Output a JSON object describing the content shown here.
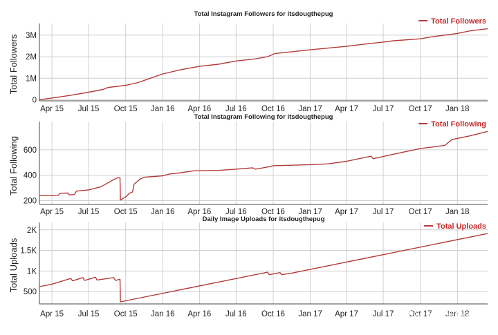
{
  "chart_data": [
    {
      "type": "line",
      "title": "Total Instagram Followers for itsdougthepug",
      "ylabel": "Total Followers",
      "xlabel": "",
      "x_ticks": [
        "Apr 15",
        "Jul 15",
        "Oct 15",
        "Jan 16",
        "Apr 16",
        "Jul 16",
        "Oct 16",
        "Jan 17",
        "Apr 17",
        "Jul 17",
        "Oct 17",
        "Jan 18"
      ],
      "y_ticks": [
        {
          "value": 0,
          "label": "0"
        },
        {
          "value": 1000000,
          "label": "1M"
        },
        {
          "value": 2000000,
          "label": "2M"
        },
        {
          "value": 3000000,
          "label": "3M"
        }
      ],
      "ylim": [
        -50000,
        3350000
      ],
      "grid": true,
      "legend_position": "top-right",
      "series": [
        {
          "name": "Total Followers",
          "color": "#b23b3b",
          "points": [
            [
              "2015-03-15",
              0
            ],
            [
              "2015-04-15",
              80000
            ],
            [
              "2015-06-01",
              210000
            ],
            [
              "2015-07-15",
              350000
            ],
            [
              "2015-08-20",
              480000
            ],
            [
              "2015-09-01",
              570000
            ],
            [
              "2015-09-10",
              590000
            ],
            [
              "2015-10-15",
              670000
            ],
            [
              "2015-11-15",
              800000
            ],
            [
              "2015-12-15",
              1000000
            ],
            [
              "2016-01-15",
              1200000
            ],
            [
              "2016-03-01",
              1400000
            ],
            [
              "2016-04-15",
              1550000
            ],
            [
              "2016-06-01",
              1650000
            ],
            [
              "2016-07-15",
              1800000
            ],
            [
              "2016-09-01",
              1900000
            ],
            [
              "2016-10-01",
              2000000
            ],
            [
              "2016-10-20",
              2150000
            ],
            [
              "2016-12-01",
              2230000
            ],
            [
              "2017-01-15",
              2320000
            ],
            [
              "2017-04-15",
              2480000
            ],
            [
              "2017-05-20",
              2560000
            ],
            [
              "2017-07-15",
              2680000
            ],
            [
              "2017-08-10",
              2740000
            ],
            [
              "2017-10-15",
              2830000
            ],
            [
              "2017-11-15",
              2930000
            ],
            [
              "2018-01-15",
              3080000
            ],
            [
              "2018-02-15",
              3200000
            ],
            [
              "2018-03-31",
              3300000
            ]
          ]
        }
      ]
    },
    {
      "type": "line",
      "title": "Total Instagram Following for itsdougthepug",
      "ylabel": "Total Following",
      "xlabel": "",
      "x_ticks": [
        "Apr 15",
        "Jul 15",
        "Oct 15",
        "Jan 16",
        "Apr 16",
        "Jul 16",
        "Oct 16",
        "Jan 17",
        "Apr 17",
        "Jul 17",
        "Oct 17",
        "Jan 18"
      ],
      "y_ticks": [
        {
          "value": 200,
          "label": "200"
        },
        {
          "value": 400,
          "label": "400"
        },
        {
          "value": 600,
          "label": "600"
        }
      ],
      "ylim": [
        170,
        790
      ],
      "grid": true,
      "legend_position": "top-right",
      "series": [
        {
          "name": "Total Following",
          "color": "#b23b3b",
          "points": [
            [
              "2015-03-15",
              240
            ],
            [
              "2015-04-15",
              240
            ],
            [
              "2015-05-01",
              242
            ],
            [
              "2015-05-05",
              258
            ],
            [
              "2015-05-25",
              260
            ],
            [
              "2015-05-28",
              245
            ],
            [
              "2015-06-10",
              248
            ],
            [
              "2015-06-15",
              275
            ],
            [
              "2015-07-15",
              285
            ],
            [
              "2015-08-15",
              310
            ],
            [
              "2015-09-01",
              340
            ],
            [
              "2015-09-15",
              365
            ],
            [
              "2015-09-25",
              380
            ],
            [
              "2015-10-01",
              380
            ],
            [
              "2015-10-02",
              205
            ],
            [
              "2015-10-15",
              230
            ],
            [
              "2015-10-25",
              260
            ],
            [
              "2015-11-01",
              268
            ],
            [
              "2015-11-05",
              330
            ],
            [
              "2015-11-20",
              370
            ],
            [
              "2015-12-01",
              385
            ],
            [
              "2016-01-15",
              395
            ],
            [
              "2016-02-01",
              410
            ],
            [
              "2016-03-01",
              420
            ],
            [
              "2016-04-01",
              435
            ],
            [
              "2016-06-01",
              438
            ],
            [
              "2016-07-15",
              448
            ],
            [
              "2016-08-25",
              458
            ],
            [
              "2016-09-01",
              448
            ],
            [
              "2016-10-01",
              465
            ],
            [
              "2016-10-15",
              475
            ],
            [
              "2017-01-15",
              483
            ],
            [
              "2017-03-01",
              490
            ],
            [
              "2017-04-15",
              510
            ],
            [
              "2017-06-15",
              550
            ],
            [
              "2017-06-20",
              530
            ],
            [
              "2017-08-01",
              560
            ],
            [
              "2017-10-15",
              610
            ],
            [
              "2017-12-15",
              635
            ],
            [
              "2018-01-01",
              680
            ],
            [
              "2018-01-15",
              690
            ],
            [
              "2018-02-15",
              710
            ],
            [
              "2018-03-31",
              745
            ]
          ]
        }
      ]
    },
    {
      "type": "line",
      "title": "Daily Image Uploads for itsdougthepug",
      "ylabel": "Total Uploads",
      "xlabel": "",
      "x_ticks": [
        "Apr 15",
        "Jul 15",
        "Oct 15",
        "Jan 16",
        "Apr 16",
        "Jul 16",
        "Oct 16",
        "Jan 17",
        "Apr 17",
        "Jul 17",
        "Oct 17",
        "Jan 18"
      ],
      "y_ticks": [
        {
          "value": 500,
          "label": "500"
        },
        {
          "value": 1000,
          "label": "1K"
        },
        {
          "value": 1500,
          "label": "1.5K"
        },
        {
          "value": 2000,
          "label": "2K"
        }
      ],
      "ylim": [
        200,
        2080
      ],
      "grid": true,
      "legend_position": "top-right",
      "series": [
        {
          "name": "Total Uploads",
          "color": "#b23b3b",
          "points": [
            [
              "2015-03-15",
              620
            ],
            [
              "2015-04-15",
              680
            ],
            [
              "2015-06-01",
              820
            ],
            [
              "2015-06-05",
              760
            ],
            [
              "2015-07-01",
              840
            ],
            [
              "2015-07-05",
              770
            ],
            [
              "2015-08-01",
              850
            ],
            [
              "2015-08-05",
              780
            ],
            [
              "2015-09-15",
              840
            ],
            [
              "2015-09-20",
              770
            ],
            [
              "2015-10-01",
              800
            ],
            [
              "2015-10-02",
              250
            ],
            [
              "2016-10-01",
              970
            ],
            [
              "2016-10-05",
              910
            ],
            [
              "2016-11-01",
              960
            ],
            [
              "2016-11-05",
              910
            ],
            [
              "2016-12-01",
              950
            ],
            [
              "2018-03-31",
              1910
            ]
          ]
        }
      ]
    }
  ],
  "watermark": "知乎 @外贸技术佬"
}
